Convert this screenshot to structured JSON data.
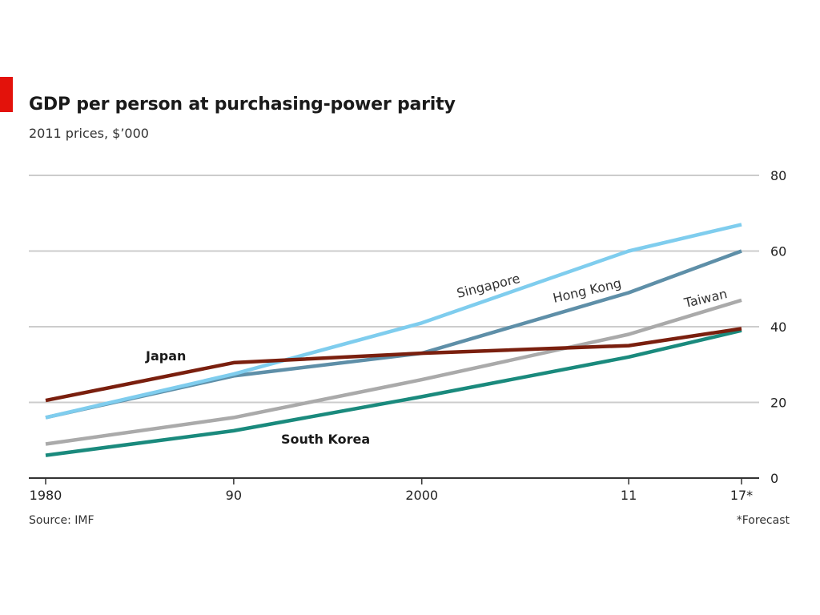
{
  "header": {
    "title": "GDP per person at purchasing-power parity",
    "subtitle": "2011 prices, $’000"
  },
  "footer": {
    "source": "Source: IMF",
    "footnote": "*Forecast"
  },
  "colors": {
    "accent": "#e3120b",
    "grid": "#cccccc",
    "axis": "#333333"
  },
  "chart_data": {
    "type": "line",
    "title": "GDP per person at purchasing-power parity",
    "subtitle": "2011 prices, $’000",
    "xlabel": "",
    "ylabel": "",
    "x": [
      1980,
      1990,
      2000,
      2011,
      2017
    ],
    "x_tick_values": [
      1980,
      1990,
      2000,
      2011,
      2017
    ],
    "x_tick_labels": [
      "1980",
      "90",
      "2000",
      "11",
      "17*"
    ],
    "xlim": [
      1980,
      2017
    ],
    "ylim": [
      0,
      80
    ],
    "y_ticks": [
      0,
      20,
      40,
      60,
      80
    ],
    "y_axis_side": "right",
    "grid": true,
    "legend": "none (direct labels)",
    "series": [
      {
        "name": "Singapore",
        "color": "#7fcdee",
        "values": [
          16,
          27.5,
          41,
          60,
          67
        ]
      },
      {
        "name": "Hong Kong",
        "color": "#5e8fa8",
        "values": [
          16,
          27,
          33,
          49,
          60
        ]
      },
      {
        "name": "Taiwan",
        "color": "#aaaaaa",
        "values": [
          9,
          16,
          26,
          38,
          47
        ]
      },
      {
        "name": "Japan",
        "color": "#7a1f0e",
        "values": [
          20.5,
          30.5,
          33,
          35,
          39.5
        ]
      },
      {
        "name": "South Korea",
        "color": "#1a8a7d",
        "values": [
          6,
          12.5,
          21.5,
          32,
          39
        ]
      }
    ]
  }
}
